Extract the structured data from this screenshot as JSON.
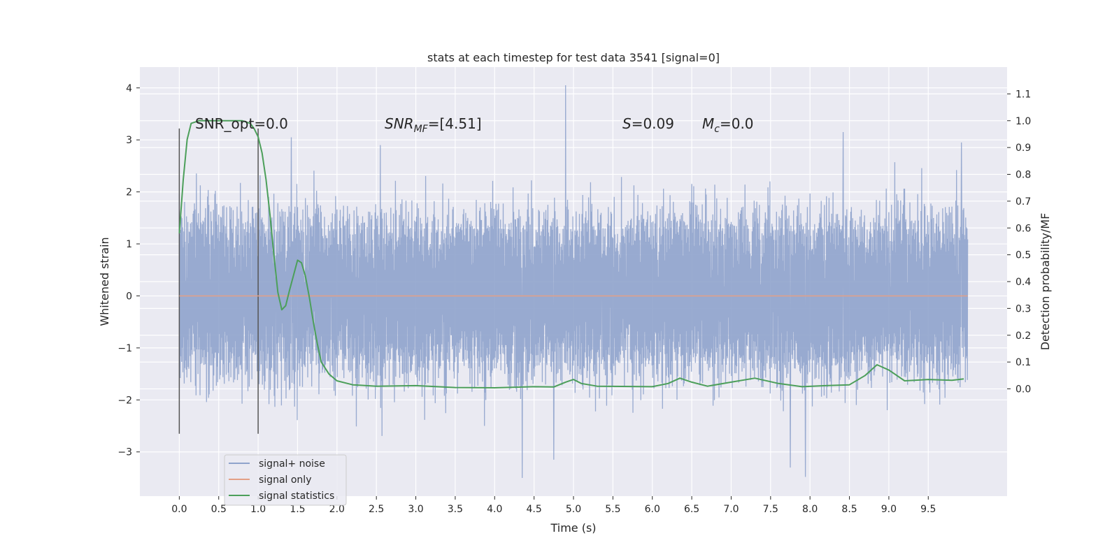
{
  "chart_data": {
    "type": "line",
    "title": "stats at each timestep for test data 3541 [signal=0]",
    "xlabel": "Time (s)",
    "ylabel_left": "Whitened strain",
    "ylabel_right": "Detection probability/MF",
    "xlim": [
      -0.5,
      10.5
    ],
    "ylim_left": [
      -3.85,
      4.4
    ],
    "ylim_right": [
      -0.4,
      1.2
    ],
    "x_ticks": [
      "0.0",
      "0.5",
      "1.0",
      "1.5",
      "2.0",
      "2.5",
      "3.0",
      "3.5",
      "4.0",
      "4.5",
      "5.0",
      "5.5",
      "6.0",
      "6.5",
      "7.0",
      "7.5",
      "8.0",
      "8.5",
      "9.0",
      "9.5"
    ],
    "y_ticks_left": [
      "4",
      "3",
      "2",
      "1",
      "0",
      "−1",
      "−2",
      "−3"
    ],
    "y_ticks_right": [
      "1.1",
      "1.0",
      "0.9",
      "0.8",
      "0.7",
      "0.6",
      "0.5",
      "0.4",
      "0.3",
      "0.2",
      "0.1",
      "0.0"
    ],
    "grid": true,
    "legend_placement": "lower-left",
    "annotations": {
      "snr_opt": "SNR_opt=0.0",
      "snr_mf_label": "SNR",
      "snr_mf_sub": "MF",
      "snr_mf_value": "=[4.51]",
      "s_label": "S",
      "s_value": "=0.09",
      "mc_label": "M",
      "mc_sub": "c",
      "mc_value": "=0.0"
    },
    "window_markers": {
      "x": [
        0.0,
        1.0
      ],
      "y_top": 3.22,
      "y_bottom": -2.65
    },
    "series": [
      {
        "name": "signal+ noise",
        "color": "#8fa3cc",
        "axis": "left",
        "x_range": [
          0.0,
          10.0
        ],
        "typical_amplitude": 1.45,
        "peaks": [
          {
            "x": 4.9,
            "y": 4.05
          },
          {
            "x": 8.42,
            "y": 3.15
          },
          {
            "x": 1.42,
            "y": 3.05
          },
          {
            "x": 9.92,
            "y": 2.95
          },
          {
            "x": 2.55,
            "y": 2.9
          },
          {
            "x": 4.35,
            "y": -3.5
          },
          {
            "x": 7.94,
            "y": -3.48
          },
          {
            "x": 7.75,
            "y": -3.3
          },
          {
            "x": 4.75,
            "y": -3.15
          }
        ]
      },
      {
        "name": "signal only",
        "color": "#e39f85",
        "axis": "left",
        "x": [
          0.0,
          10.0
        ],
        "y": [
          0.0,
          0.0
        ]
      },
      {
        "name": "signal statistics",
        "color": "#4c9f5a",
        "axis": "right",
        "x": [
          0.0,
          0.05,
          0.1,
          0.15,
          0.25,
          0.4,
          0.6,
          0.8,
          0.9,
          0.95,
          1.0,
          1.05,
          1.1,
          1.15,
          1.2,
          1.25,
          1.3,
          1.35,
          1.4,
          1.5,
          1.55,
          1.6,
          1.65,
          1.7,
          1.75,
          1.8,
          1.9,
          2.0,
          2.2,
          2.5,
          3.0,
          3.5,
          4.0,
          4.5,
          4.75,
          4.9,
          5.0,
          5.1,
          5.3,
          5.6,
          6.0,
          6.2,
          6.35,
          6.5,
          6.7,
          7.0,
          7.3,
          7.6,
          7.9,
          8.2,
          8.5,
          8.7,
          8.85,
          9.0,
          9.2,
          9.5,
          9.8,
          9.95
        ],
        "y": [
          0.58,
          0.78,
          0.93,
          0.99,
          1.0,
          1.0,
          1.0,
          1.0,
          0.99,
          0.97,
          0.94,
          0.88,
          0.78,
          0.65,
          0.5,
          0.36,
          0.295,
          0.31,
          0.37,
          0.48,
          0.47,
          0.42,
          0.34,
          0.25,
          0.17,
          0.1,
          0.055,
          0.03,
          0.015,
          0.01,
          0.012,
          0.005,
          0.004,
          0.008,
          0.007,
          0.025,
          0.035,
          0.02,
          0.01,
          0.009,
          0.008,
          0.02,
          0.04,
          0.025,
          0.01,
          0.025,
          0.04,
          0.02,
          0.008,
          0.012,
          0.015,
          0.05,
          0.09,
          0.07,
          0.03,
          0.035,
          0.032,
          0.037
        ]
      }
    ]
  }
}
